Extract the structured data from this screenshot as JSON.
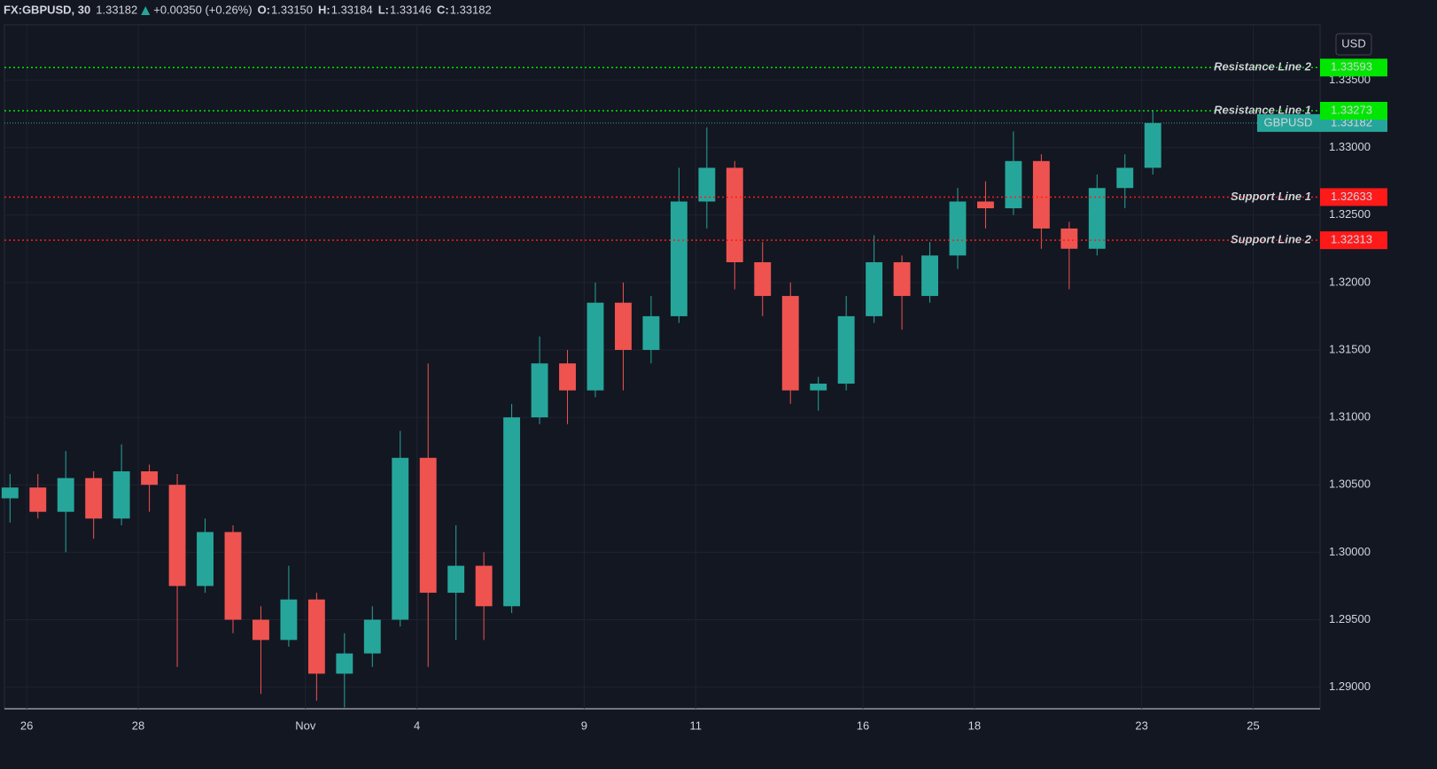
{
  "header": {
    "symbol": "FX:GBPUSD, 30",
    "last": "1.33182",
    "change": "+0.00350 (+0.26%)",
    "ohlc": [
      {
        "label": "O:",
        "value": "1.33150"
      },
      {
        "label": "H:",
        "value": "1.33184"
      },
      {
        "label": "L:",
        "value": "1.33146"
      },
      {
        "label": "C:",
        "value": "1.33182"
      }
    ]
  },
  "chart_data": {
    "type": "candlestick",
    "currency": "USD",
    "up_color": "#26a69a",
    "down_color": "#ef5350",
    "xlim": [
      -0.4,
      23.2
    ],
    "ylim": [
      1.2884,
      1.3391
    ],
    "xticks": [
      {
        "value": 0,
        "label": "26"
      },
      {
        "value": 2,
        "label": "28"
      },
      {
        "value": 5,
        "label": "Nov"
      },
      {
        "value": 7,
        "label": "4"
      },
      {
        "value": 10,
        "label": "9"
      },
      {
        "value": 12,
        "label": "11"
      },
      {
        "value": 15,
        "label": "16"
      },
      {
        "value": 17,
        "label": "18"
      },
      {
        "value": 20,
        "label": "23"
      },
      {
        "value": 22,
        "label": "25"
      }
    ],
    "yticks": [
      {
        "value": 1.29,
        "label": "1.29000"
      },
      {
        "value": 1.295,
        "label": "1.29500"
      },
      {
        "value": 1.3,
        "label": "1.30000"
      },
      {
        "value": 1.305,
        "label": "1.30500"
      },
      {
        "value": 1.31,
        "label": "1.31000"
      },
      {
        "value": 1.315,
        "label": "1.31500"
      },
      {
        "value": 1.32,
        "label": "1.32000"
      },
      {
        "value": 1.325,
        "label": "1.32500"
      },
      {
        "value": 1.33,
        "label": "1.33000"
      },
      {
        "value": 1.335,
        "label": "1.33500"
      }
    ],
    "grid": true,
    "x": [
      -0.3,
      0.2,
      0.7,
      1.2,
      1.7,
      2.2,
      2.7,
      3.2,
      3.7,
      4.2,
      4.7,
      5.2,
      5.7,
      6.2,
      6.7,
      7.2,
      7.7,
      8.2,
      8.7,
      9.2,
      9.7,
      10.2,
      10.7,
      11.2,
      11.7,
      12.2,
      12.7,
      13.2,
      13.7,
      14.2,
      14.7,
      15.2,
      15.7,
      16.2,
      16.7,
      17.2,
      17.7,
      18.2,
      18.7,
      19.2,
      19.7,
      20.2
    ],
    "ohlc": [
      [
        1.304,
        1.3058,
        1.3022,
        1.3048
      ],
      [
        1.3048,
        1.3058,
        1.3025,
        1.303
      ],
      [
        1.303,
        1.3075,
        1.3,
        1.3055
      ],
      [
        1.3055,
        1.306,
        1.301,
        1.3025
      ],
      [
        1.3025,
        1.308,
        1.302,
        1.306
      ],
      [
        1.306,
        1.3065,
        1.303,
        1.305
      ],
      [
        1.305,
        1.3058,
        1.2915,
        1.2975
      ],
      [
        1.2975,
        1.3025,
        1.297,
        1.3015
      ],
      [
        1.3015,
        1.302,
        1.294,
        1.295
      ],
      [
        1.295,
        1.296,
        1.2895,
        1.2935
      ],
      [
        1.2935,
        1.299,
        1.293,
        1.2965
      ],
      [
        1.2965,
        1.297,
        1.289,
        1.291
      ],
      [
        1.291,
        1.294,
        1.2885,
        1.2925
      ],
      [
        1.2925,
        1.296,
        1.2915,
        1.295
      ],
      [
        1.295,
        1.309,
        1.2945,
        1.307
      ],
      [
        1.307,
        1.314,
        1.2915,
        1.297
      ],
      [
        1.297,
        1.302,
        1.2935,
        1.299
      ],
      [
        1.299,
        1.3,
        1.2935,
        1.296
      ],
      [
        1.296,
        1.311,
        1.2955,
        1.31
      ],
      [
        1.31,
        1.316,
        1.3095,
        1.314
      ],
      [
        1.314,
        1.315,
        1.3095,
        1.312
      ],
      [
        1.312,
        1.32,
        1.3115,
        1.3185
      ],
      [
        1.3185,
        1.32,
        1.312,
        1.315
      ],
      [
        1.315,
        1.319,
        1.314,
        1.3175
      ],
      [
        1.3175,
        1.3285,
        1.317,
        1.326
      ],
      [
        1.326,
        1.3315,
        1.324,
        1.3285
      ],
      [
        1.3285,
        1.329,
        1.3195,
        1.3215
      ],
      [
        1.3215,
        1.323,
        1.3175,
        1.319
      ],
      [
        1.319,
        1.32,
        1.311,
        1.312
      ],
      [
        1.312,
        1.313,
        1.3105,
        1.3125
      ],
      [
        1.3125,
        1.319,
        1.312,
        1.3175
      ],
      [
        1.3175,
        1.3235,
        1.317,
        1.3215
      ],
      [
        1.3215,
        1.322,
        1.3165,
        1.319
      ],
      [
        1.319,
        1.323,
        1.3185,
        1.322
      ],
      [
        1.322,
        1.327,
        1.321,
        1.326
      ],
      [
        1.326,
        1.3275,
        1.324,
        1.3255
      ],
      [
        1.3255,
        1.3312,
        1.325,
        1.329
      ],
      [
        1.329,
        1.3295,
        1.3225,
        1.324
      ],
      [
        1.324,
        1.3245,
        1.3195,
        1.3225
      ],
      [
        1.3225,
        1.328,
        1.322,
        1.327
      ],
      [
        1.327,
        1.3295,
        1.3255,
        1.3285
      ],
      [
        1.3285,
        1.3327,
        1.328,
        1.33182
      ]
    ],
    "levels": [
      {
        "name": "Resistance Line 2",
        "value": 1.33593,
        "color": "#00e600"
      },
      {
        "name": "Resistance Line 1",
        "value": 1.33273,
        "color": "#00e600"
      },
      {
        "name": "Support Line 1",
        "value": 1.32633,
        "color": "#ff1a1a"
      },
      {
        "name": "Support Line 2",
        "value": 1.32313,
        "color": "#ff1a1a"
      }
    ],
    "last_price": {
      "name": "GBPUSD",
      "value": 1.33182,
      "color": "#26a69a"
    }
  }
}
